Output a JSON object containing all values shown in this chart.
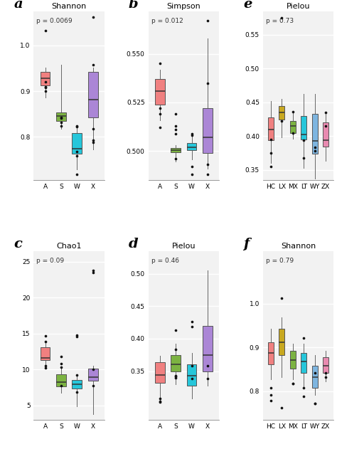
{
  "panels": [
    {
      "label": "a",
      "title": "Shannon",
      "pval": "p = 0.0069",
      "categories": [
        "A",
        "S",
        "W",
        "X"
      ],
      "colors": [
        "#F08080",
        "#7CB342",
        "#26C6DA",
        "#AB86D6"
      ],
      "ylim": [
        0.705,
        1.075
      ],
      "yticks": [
        0.8,
        0.9,
        1.0
      ],
      "yticklabels": [
        "0.8",
        "0.9",
        "1.0"
      ],
      "boxes": [
        {
          "q1": 0.912,
          "med": 0.928,
          "q3": 0.942,
          "whislo": 0.886,
          "whishi": 0.952,
          "fliers": [
            1.032,
            0.9,
            0.908,
            0.921,
            0.909
          ]
        },
        {
          "q1": 0.835,
          "med": 0.845,
          "q3": 0.853,
          "whislo": 0.818,
          "whishi": 0.958,
          "fliers": [
            0.831,
            0.841,
            0.823,
            0.843
          ]
        },
        {
          "q1": 0.762,
          "med": 0.773,
          "q3": 0.808,
          "whislo": 0.728,
          "whishi": 0.823,
          "fliers": [
            0.822,
            0.823,
            0.768,
            0.758,
            0.718
          ]
        },
        {
          "q1": 0.843,
          "med": 0.882,
          "q3": 0.942,
          "whislo": 0.772,
          "whishi": 0.952,
          "fliers": [
            1.062,
            0.958,
            0.788,
            0.818,
            0.792
          ]
        }
      ]
    },
    {
      "label": "b",
      "title": "Simpson",
      "pval": "p = 0.012",
      "categories": [
        "A",
        "S",
        "W",
        "X"
      ],
      "colors": [
        "#F08080",
        "#7CB342",
        "#26C6DA",
        "#AB86D6"
      ],
      "ylim": [
        0.485,
        0.572
      ],
      "yticks": [
        0.5,
        0.525,
        0.55
      ],
      "yticklabels": [
        "0.500",
        "0.525",
        "0.550"
      ],
      "boxes": [
        {
          "q1": 0.524,
          "med": 0.531,
          "q3": 0.537,
          "whislo": 0.516,
          "whishi": 0.542,
          "fliers": [
            0.545,
            0.522,
            0.519,
            0.512
          ]
        },
        {
          "q1": 0.4995,
          "med": 0.5005,
          "q3": 0.5015,
          "whislo": 0.4945,
          "whishi": 0.503,
          "fliers": [
            0.519,
            0.513,
            0.511,
            0.509,
            0.496
          ]
        },
        {
          "q1": 0.5005,
          "med": 0.502,
          "q3": 0.504,
          "whislo": 0.4955,
          "whishi": 0.508,
          "fliers": [
            0.509,
            0.508,
            0.492,
            0.488
          ]
        },
        {
          "q1": 0.499,
          "med": 0.507,
          "q3": 0.522,
          "whislo": 0.491,
          "whishi": 0.558,
          "fliers": [
            0.567,
            0.535,
            0.493,
            0.488
          ]
        }
      ]
    },
    {
      "label": "e",
      "title": "Pielou",
      "pval": "p = 0.73",
      "categories": [
        "HC",
        "LX",
        "MX",
        "LT",
        "WY",
        "ZX"
      ],
      "colors": [
        "#F08080",
        "#C8A820",
        "#7CB342",
        "#26C6DA",
        "#7EB5E0",
        "#E88AB0"
      ],
      "ylim": [
        0.335,
        0.585
      ],
      "yticks": [
        0.35,
        0.4,
        0.45,
        0.5,
        0.55
      ],
      "yticklabels": [
        "0.35",
        "0.40",
        "0.45",
        "0.50",
        "0.55"
      ],
      "boxes": [
        {
          "q1": 0.394,
          "med": 0.41,
          "q3": 0.428,
          "whislo": 0.36,
          "whishi": 0.452,
          "fliers": [
            0.395,
            0.375,
            0.355
          ]
        },
        {
          "q1": 0.425,
          "med": 0.435,
          "q3": 0.445,
          "whislo": 0.398,
          "whishi": 0.455,
          "fliers": [
            0.423,
            0.575
          ]
        },
        {
          "q1": 0.405,
          "med": 0.415,
          "q3": 0.423,
          "whislo": 0.396,
          "whishi": 0.435,
          "fliers": [
            0.436,
            0.405
          ]
        },
        {
          "q1": 0.395,
          "med": 0.403,
          "q3": 0.43,
          "whislo": 0.353,
          "whishi": 0.463,
          "fliers": [
            0.394,
            0.368
          ]
        },
        {
          "q1": 0.374,
          "med": 0.393,
          "q3": 0.433,
          "whislo": 0.337,
          "whishi": 0.463,
          "fliers": [
            0.384,
            0.378
          ]
        },
        {
          "q1": 0.385,
          "med": 0.394,
          "q3": 0.42,
          "whislo": 0.363,
          "whishi": 0.433,
          "fliers": [
            0.435,
            0.415
          ]
        }
      ]
    },
    {
      "label": "c",
      "title": "Chao1",
      "pval": "p = 0.09",
      "categories": [
        "A",
        "S",
        "W",
        "X"
      ],
      "colors": [
        "#F08080",
        "#7CB342",
        "#26C6DA",
        "#AB86D6"
      ],
      "ylim": [
        3.0,
        26.5
      ],
      "yticks": [
        5,
        10,
        15,
        20,
        25
      ],
      "yticklabels": [
        "5",
        "10",
        "15",
        "20",
        "25"
      ],
      "boxes": [
        {
          "q1": 11.3,
          "med": 11.6,
          "q3": 13.1,
          "whislo": 10.1,
          "whishi": 13.8,
          "fliers": [
            10.2,
            10.5,
            14.7,
            13.9
          ]
        },
        {
          "q1": 7.7,
          "med": 8.2,
          "q3": 9.3,
          "whislo": 6.8,
          "whishi": 10.3,
          "fliers": [
            11.8,
            10.8,
            10.3,
            7.8
          ]
        },
        {
          "q1": 7.4,
          "med": 8.0,
          "q3": 8.5,
          "whislo": 4.9,
          "whishi": 9.3,
          "fliers": [
            14.8,
            14.6,
            9.2,
            6.9
          ]
        },
        {
          "q1": 8.4,
          "med": 8.9,
          "q3": 10.1,
          "whislo": 3.8,
          "whishi": 10.5,
          "fliers": [
            23.8,
            23.5,
            10.0,
            7.8
          ]
        }
      ]
    },
    {
      "label": "d",
      "title": "Pielou",
      "pval": "p = 0.46",
      "categories": [
        "A",
        "S",
        "W",
        "X"
      ],
      "colors": [
        "#F08080",
        "#7CB342",
        "#26C6DA",
        "#AB86D6"
      ],
      "ylim": [
        0.275,
        0.535
      ],
      "yticks": [
        0.35,
        0.4,
        0.45,
        0.5
      ],
      "yticklabels": [
        "0.35",
        "0.40",
        "0.45",
        "0.50"
      ],
      "boxes": [
        {
          "q1": 0.332,
          "med": 0.344,
          "q3": 0.364,
          "whislo": 0.303,
          "whishi": 0.374,
          "fliers": [
            0.303,
            0.308,
            0.302
          ]
        },
        {
          "q1": 0.35,
          "med": 0.36,
          "q3": 0.375,
          "whislo": 0.33,
          "whishi": 0.392,
          "fliers": [
            0.413,
            0.383,
            0.343,
            0.342,
            0.34
          ]
        },
        {
          "q1": 0.328,
          "med": 0.343,
          "q3": 0.36,
          "whislo": 0.308,
          "whishi": 0.378,
          "fliers": [
            0.426,
            0.418,
            0.358,
            0.338
          ]
        },
        {
          "q1": 0.35,
          "med": 0.375,
          "q3": 0.42,
          "whislo": 0.328,
          "whishi": 0.505,
          "fliers": [
            0.358,
            0.338
          ]
        }
      ]
    },
    {
      "label": "f",
      "title": "Shannon",
      "pval": "p = 0.79",
      "categories": [
        "HC",
        "LX",
        "MX",
        "LT",
        "WY",
        "ZX"
      ],
      "colors": [
        "#F08080",
        "#C8A820",
        "#7CB342",
        "#26C6DA",
        "#7EB5E0",
        "#E88AB0"
      ],
      "ylim": [
        0.735,
        1.12
      ],
      "yticks": [
        0.8,
        0.9,
        1.0
      ],
      "yticklabels": [
        "0.8",
        "0.9",
        "1.0"
      ],
      "boxes": [
        {
          "q1": 0.862,
          "med": 0.888,
          "q3": 0.912,
          "whislo": 0.828,
          "whishi": 0.942,
          "fliers": [
            0.792,
            0.778,
            0.808
          ]
        },
        {
          "q1": 0.882,
          "med": 0.912,
          "q3": 0.942,
          "whislo": 0.832,
          "whishi": 0.968,
          "fliers": [
            0.762,
            1.012
          ]
        },
        {
          "q1": 0.852,
          "med": 0.872,
          "q3": 0.892,
          "whislo": 0.828,
          "whishi": 0.908,
          "fliers": [
            0.818,
            0.818
          ]
        },
        {
          "q1": 0.842,
          "med": 0.868,
          "q3": 0.888,
          "whislo": 0.808,
          "whishi": 0.908,
          "fliers": [
            0.808,
            0.788,
            0.922
          ]
        },
        {
          "q1": 0.808,
          "med": 0.832,
          "q3": 0.858,
          "whislo": 0.792,
          "whishi": 0.882,
          "fliers": [
            0.772,
            0.772,
            0.842
          ]
        },
        {
          "q1": 0.842,
          "med": 0.858,
          "q3": 0.878,
          "whislo": 0.822,
          "whishi": 0.892,
          "fliers": [
            0.832,
            0.842
          ]
        }
      ]
    }
  ],
  "bg_color": "#FFFFFF",
  "plot_bg_color": "#F2F2F2",
  "grid_color": "#FFFFFF",
  "panel_order": [
    "a",
    "b",
    "e",
    "c",
    "d",
    "f"
  ]
}
